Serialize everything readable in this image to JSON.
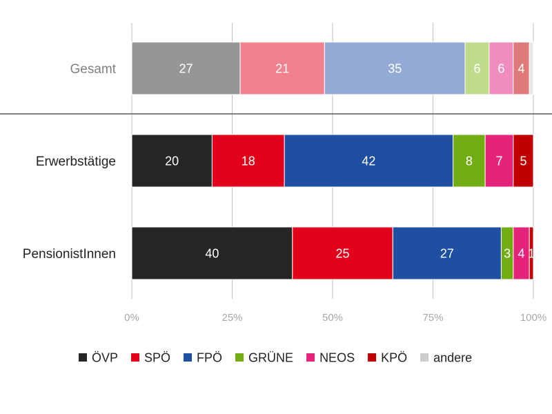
{
  "chart_data": {
    "type": "bar",
    "orientation": "horizontal",
    "stacked": true,
    "categories": [
      "Gesamt",
      "Erwerbstätige",
      "PensionistInnen"
    ],
    "xlim": [
      0,
      100
    ],
    "x_ticks": [
      "0%",
      "25%",
      "50%",
      "75%",
      "100%"
    ],
    "grid": true,
    "legend_position": "bottom",
    "series": [
      {
        "name": "ÖVP",
        "values": [
          27,
          20,
          40
        ],
        "colors": [
          "#969696",
          "#262626",
          "#262626"
        ],
        "legend_color": "#262626"
      },
      {
        "name": "SPÖ",
        "values": [
          21,
          18,
          25
        ],
        "colors": [
          "#f0828e",
          "#e3001b",
          "#e3001b"
        ],
        "legend_color": "#e3001b"
      },
      {
        "name": "FPÖ",
        "values": [
          35,
          42,
          27
        ],
        "colors": [
          "#93aad4",
          "#1f4fa0",
          "#1f4fa0"
        ],
        "legend_color": "#1f4fa0"
      },
      {
        "name": "GRÜNE",
        "values": [
          6,
          8,
          3
        ],
        "colors": [
          "#bfdc8c",
          "#73ad14",
          "#73ad14"
        ],
        "legend_color": "#73ad14"
      },
      {
        "name": "NEOS",
        "values": [
          6,
          7,
          4
        ],
        "colors": [
          "#f08cbe",
          "#e5237a",
          "#e5237a"
        ],
        "legend_color": "#e5237a"
      },
      {
        "name": "KPÖ",
        "values": [
          4,
          5,
          1
        ],
        "colors": [
          "#e07a7a",
          "#c00000",
          "#c00000"
        ],
        "legend_color": "#c00000"
      },
      {
        "name": "andere",
        "values": [
          1,
          0,
          0
        ],
        "colors": [
          "#e6e6e6",
          "#cccccc",
          "#cccccc"
        ],
        "legend_color": "#cccccc"
      }
    ],
    "data_labels": [
      [
        "27",
        "21",
        "35",
        "6",
        "6",
        "4",
        ""
      ],
      [
        "20",
        "18",
        "42",
        "8",
        "7",
        "5",
        ""
      ],
      [
        "40",
        "25",
        "27",
        "3",
        "4",
        "1",
        ""
      ]
    ],
    "muted_categories": [
      "Gesamt"
    ]
  }
}
